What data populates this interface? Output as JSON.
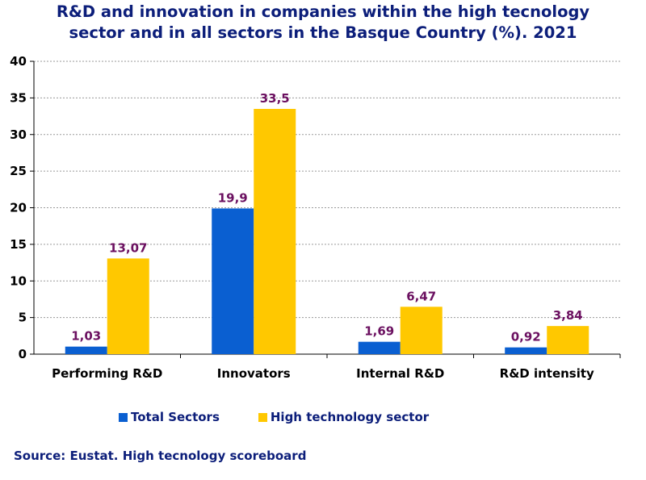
{
  "chart_data": {
    "type": "bar",
    "title_line1": "R&D and innovation in companies within the high tecnology",
    "title_line2": "sector and in all sectors in the Basque Country (%). 2021",
    "categories": [
      "Performing R&D",
      "Innovators",
      "Internal R&D",
      "R&D intensity"
    ],
    "series": [
      {
        "name": "Total Sectors",
        "values": [
          1.03,
          19.9,
          1.69,
          0.92
        ],
        "labels": [
          "1,03",
          "19,9",
          "1,69",
          "0,92"
        ],
        "color": "#0a5fd1"
      },
      {
        "name": "High technology sector",
        "values": [
          13.07,
          33.5,
          6.47,
          3.84
        ],
        "labels": [
          "13,07",
          "33,5",
          "6,47",
          "3,84"
        ],
        "color": "#ffc800"
      }
    ],
    "ylim": [
      0,
      40
    ],
    "yticks": [
      0,
      5,
      10,
      15,
      20,
      25,
      30,
      35,
      40
    ],
    "grid": true,
    "legend_position": "bottom",
    "label_color": "#6b1060"
  },
  "source": "Source: Eustat. High tecnology scoreboard"
}
